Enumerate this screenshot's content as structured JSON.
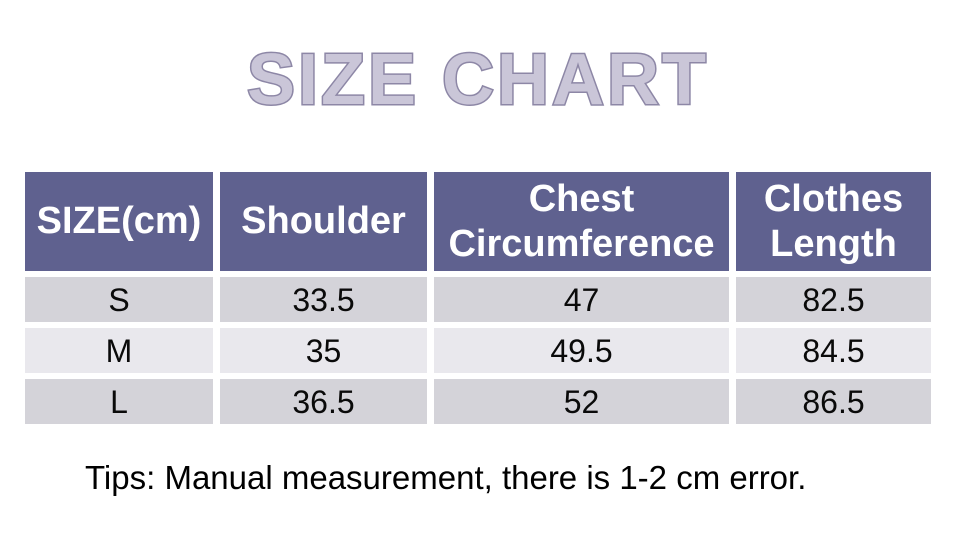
{
  "title": "SIZE CHART",
  "table": {
    "headers": [
      "SIZE(cm)",
      "Shoulder",
      "Chest Circumference",
      "Clothes Length"
    ],
    "rows": [
      [
        "S",
        "33.5",
        "47",
        "82.5"
      ],
      [
        "M",
        "35",
        "49.5",
        "84.5"
      ],
      [
        "L",
        "36.5",
        "52",
        "86.5"
      ]
    ]
  },
  "tips": "Tips: Manual measurement, there is 1-2 cm error.",
  "colors": {
    "header_bg": "#5f618f",
    "header_text": "#ffffff",
    "row_dark": "#d4d3d9",
    "row_light": "#e9e8ed",
    "title_fill": "#cac6d8",
    "title_outline": "#8d87a6",
    "body_text": "#0a0a0a"
  },
  "chart_data": {
    "type": "table",
    "title": "SIZE CHART",
    "units": "cm",
    "columns": [
      "SIZE(cm)",
      "Shoulder",
      "Chest Circumference",
      "Clothes Length"
    ],
    "rows": [
      {
        "size": "S",
        "shoulder": 33.5,
        "chest_circumference": 47,
        "clothes_length": 82.5
      },
      {
        "size": "M",
        "shoulder": 35,
        "chest_circumference": 49.5,
        "clothes_length": 84.5
      },
      {
        "size": "L",
        "shoulder": 36.5,
        "chest_circumference": 52,
        "clothes_length": 86.5
      }
    ],
    "note": "Tips: Manual measurement, there is 1-2 cm error."
  }
}
